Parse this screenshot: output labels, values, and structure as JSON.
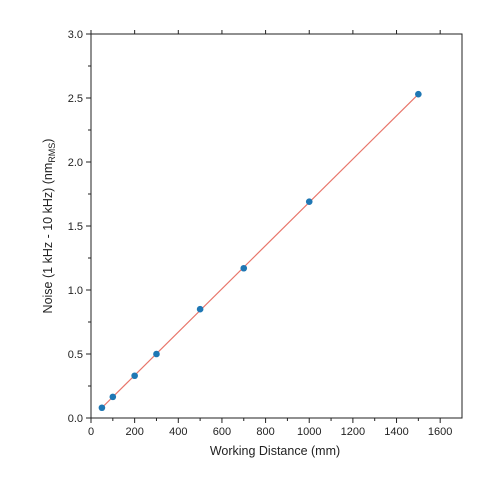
{
  "chart_data": {
    "type": "scatter",
    "xlabel": "Working Distance (mm)",
    "ylabel_main": "Noise (1 kHz - 10 kHz) (nm",
    "ylabel_sub": "RMS",
    "ylabel_close": ")",
    "xlim": [
      0,
      1700
    ],
    "ylim": [
      0,
      3.0
    ],
    "xticks": [
      0,
      200,
      400,
      600,
      800,
      1000,
      1200,
      1400,
      1600
    ],
    "yticks": [
      0.0,
      0.5,
      1.0,
      1.5,
      2.0,
      2.5,
      3.0
    ],
    "xtick_labels": [
      "0",
      "200",
      "400",
      "600",
      "800",
      "1000",
      "1200",
      "1400",
      "1600"
    ],
    "ytick_labels": [
      "0.0",
      "0.5",
      "1.0",
      "1.5",
      "2.0",
      "2.5",
      "3.0"
    ],
    "grid": false,
    "series": [
      {
        "x": [
          50,
          100,
          200,
          300,
          500,
          700,
          1000,
          1500
        ],
        "y": [
          0.08,
          0.165,
          0.33,
          0.5,
          0.85,
          1.17,
          1.69,
          2.53
        ],
        "marker_color": "#1f77b4"
      }
    ],
    "fit_line": {
      "x": [
        50,
        1500
      ],
      "y": [
        0.08,
        2.53
      ],
      "color": "#e8756a"
    }
  }
}
